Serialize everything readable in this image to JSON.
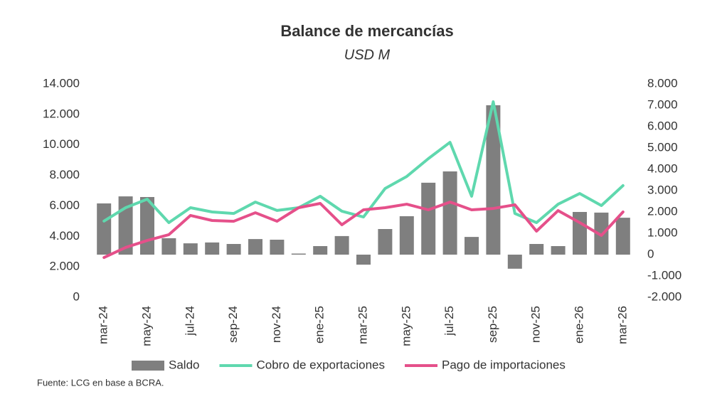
{
  "chart_data": {
    "type": "bar",
    "title": "Balance de mercancías",
    "subtitle": "USD M",
    "source": "Fuente: LCG en base a BCRA.",
    "categories": [
      "mar-24",
      null,
      "may-24",
      null,
      "jul-24",
      null,
      "sep-24",
      null,
      "nov-24",
      null,
      "ene-25",
      null,
      "mar-25",
      null,
      "may-25",
      null,
      "jul-25",
      null,
      "sep-25",
      null,
      "nov-25",
      null,
      "ene-26",
      null,
      "mar-26"
    ],
    "series": [
      {
        "name": "Saldo",
        "type": "bar",
        "axis": "y2",
        "color": "#7f7f7f",
        "values": [
          2400,
          2730,
          2700,
          770,
          530,
          570,
          500,
          730,
          700,
          50,
          400,
          870,
          -470,
          1200,
          1800,
          3370,
          3900,
          830,
          7000,
          -660,
          500,
          400,
          2000,
          1970,
          1730
        ]
      },
      {
        "name": "Cobro de exportaciones",
        "type": "line",
        "color": "#5fd8ae",
        "values": [
          5000,
          5880,
          6440,
          4900,
          5880,
          5600,
          5500,
          6250,
          5700,
          5880,
          6630,
          5650,
          5270,
          7140,
          7930,
          9100,
          10170,
          6630,
          12830,
          5500,
          4900,
          6110,
          6810,
          6020,
          7330
        ]
      },
      {
        "name": "Pago de importaciones",
        "type": "line",
        "color": "#e5508a",
        "values": [
          2610,
          3270,
          3730,
          4110,
          5370,
          5040,
          4990,
          5550,
          4990,
          5880,
          6160,
          4760,
          5740,
          5880,
          6110,
          5740,
          6250,
          5740,
          5830,
          6070,
          4340,
          5690,
          4900,
          4060,
          5600
        ]
      }
    ],
    "ylim": [
      0,
      14000
    ],
    "yticks": [
      0,
      {
        "value": 2000,
        "label": "2.000"
      },
      {
        "value": 4000,
        "label": "4.000"
      },
      {
        "value": 6000,
        "label": "6.000"
      },
      {
        "value": 8000,
        "label": "8.000"
      },
      {
        "value": 10000,
        "label": "10.000"
      },
      {
        "value": 12000,
        "label": "12.000"
      },
      {
        "value": 14000,
        "label": "14.000"
      }
    ],
    "y2lim": [
      -2000,
      8000
    ],
    "y2ticks": [
      {
        "value": -2000,
        "label": "-2.000"
      },
      {
        "value": -1000,
        "label": "-1.000"
      },
      0,
      {
        "value": 1000,
        "label": "1.000"
      },
      {
        "value": 2000,
        "label": "2.000"
      },
      {
        "value": 3000,
        "label": "3.000"
      },
      {
        "value": 4000,
        "label": "4.000"
      },
      {
        "value": 5000,
        "label": "5.000"
      },
      {
        "value": 6000,
        "label": "6.000"
      },
      {
        "value": 7000,
        "label": "7.000"
      },
      {
        "value": 8000,
        "label": "8.000"
      }
    ],
    "grid": false,
    "legend": "bottom"
  }
}
